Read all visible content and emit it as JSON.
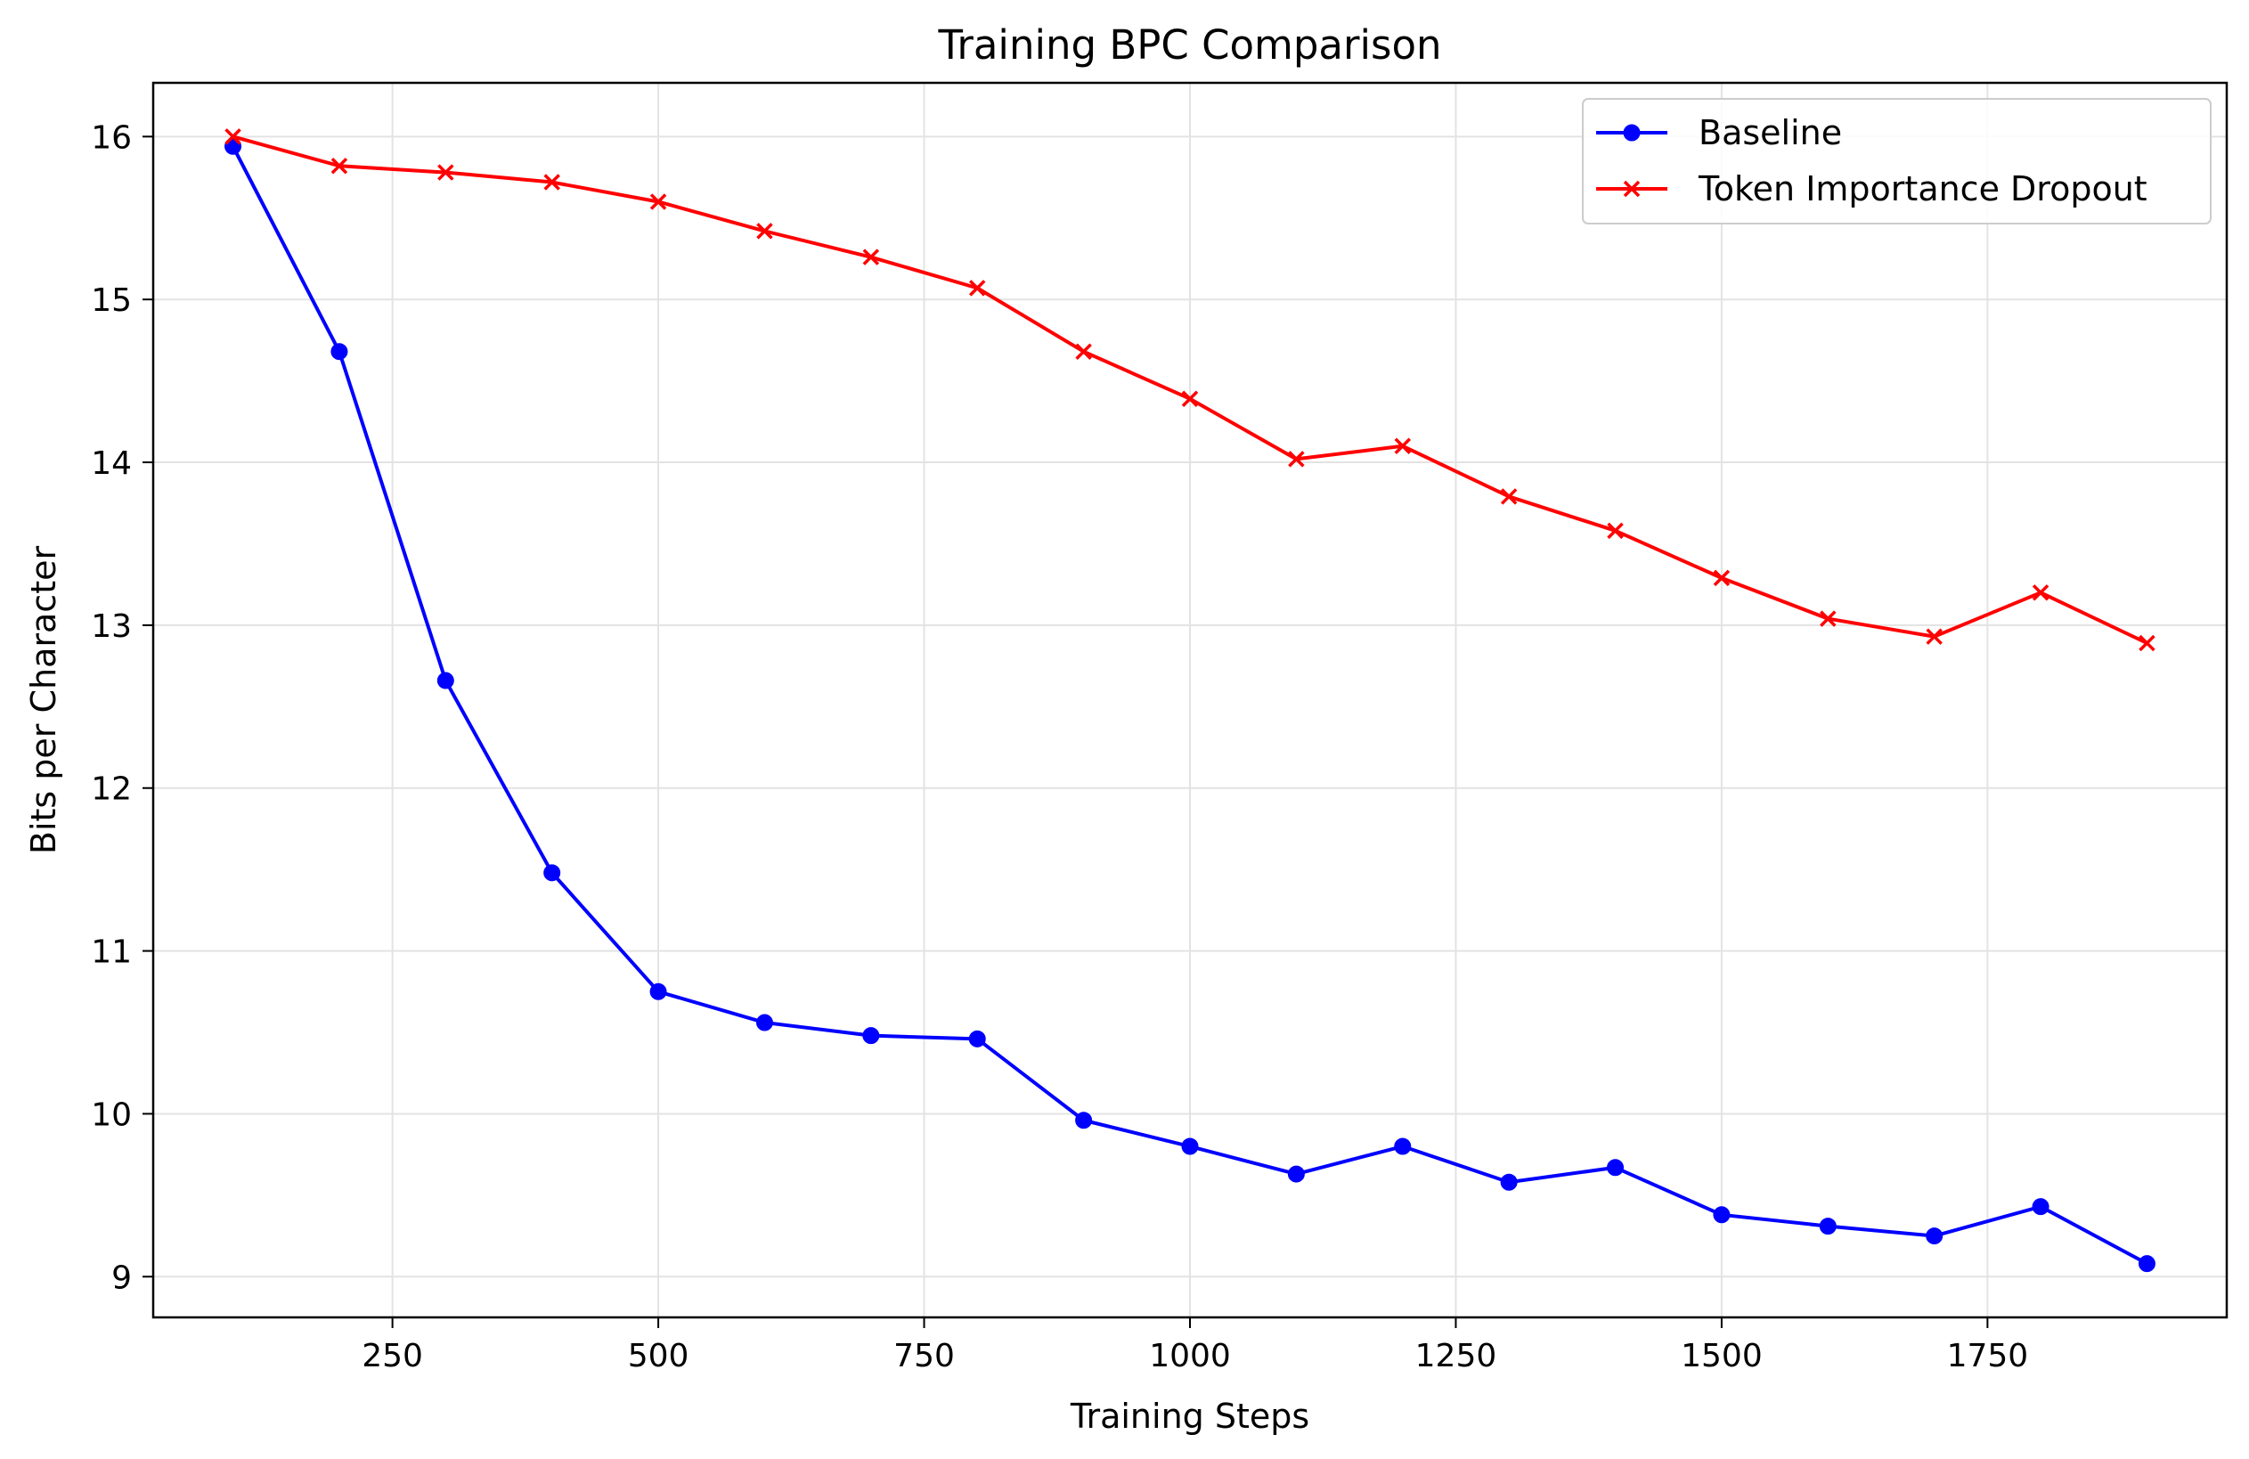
{
  "chart_data": {
    "type": "line",
    "title": "Training BPC Comparison",
    "xlabel": "Training Steps",
    "ylabel": "Bits per Character",
    "xlim": [
      25,
      1975
    ],
    "ylim": [
      8.75,
      16.33
    ],
    "xticks": [
      250,
      500,
      750,
      1000,
      1250,
      1500,
      1750
    ],
    "yticks": [
      9,
      10,
      11,
      12,
      13,
      14,
      15,
      16
    ],
    "grid": true,
    "legend_position": "top-right",
    "x": [
      100,
      200,
      300,
      400,
      500,
      600,
      700,
      800,
      900,
      1000,
      1100,
      1200,
      1300,
      1400,
      1500,
      1600,
      1700,
      1800,
      1900
    ],
    "series": [
      {
        "name": "Baseline",
        "color": "#0000ff",
        "marker": "circle",
        "values": [
          15.94,
          14.68,
          12.66,
          11.48,
          10.75,
          10.56,
          10.48,
          10.46,
          9.96,
          9.8,
          9.63,
          9.8,
          9.58,
          9.67,
          9.38,
          9.31,
          9.25,
          9.43,
          9.08
        ]
      },
      {
        "name": "Token Importance Dropout",
        "color": "#ff0000",
        "marker": "x",
        "values": [
          16.0,
          15.82,
          15.78,
          15.72,
          15.6,
          15.42,
          15.26,
          15.07,
          14.68,
          14.39,
          14.02,
          14.1,
          13.79,
          13.58,
          13.29,
          13.04,
          12.93,
          13.2,
          12.89
        ]
      }
    ]
  }
}
